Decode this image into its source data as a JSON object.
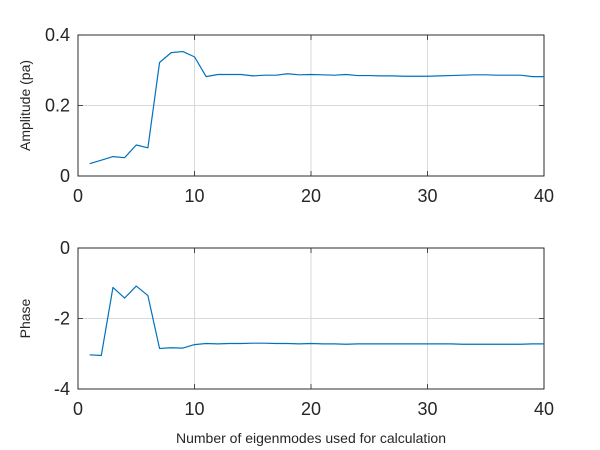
{
  "chart_data": [
    {
      "type": "line",
      "title": "",
      "xlabel": "",
      "ylabel": "Amplitude (pa)",
      "xlim": [
        0,
        40
      ],
      "ylim": [
        0,
        0.4
      ],
      "xticks": [
        0,
        10,
        20,
        30,
        40
      ],
      "yticks": [
        0,
        0.2,
        0.4
      ],
      "xtick_labels": [
        "0",
        "10",
        "20",
        "30",
        "40"
      ],
      "ytick_labels": [
        "0",
        "0.2",
        "0.4"
      ],
      "grid": true,
      "color": "#0072BD",
      "x": [
        1,
        2,
        3,
        4,
        5,
        6,
        7,
        8,
        9,
        10,
        11,
        12,
        13,
        14,
        15,
        16,
        17,
        18,
        19,
        20,
        21,
        22,
        23,
        24,
        25,
        26,
        27,
        28,
        29,
        30,
        31,
        32,
        33,
        34,
        35,
        36,
        37,
        38,
        39,
        40
      ],
      "y": [
        0.035,
        0.045,
        0.055,
        0.052,
        0.088,
        0.08,
        0.322,
        0.35,
        0.353,
        0.338,
        0.282,
        0.288,
        0.288,
        0.288,
        0.284,
        0.286,
        0.286,
        0.29,
        0.287,
        0.288,
        0.287,
        0.286,
        0.288,
        0.285,
        0.285,
        0.284,
        0.284,
        0.283,
        0.283,
        0.283,
        0.284,
        0.285,
        0.286,
        0.287,
        0.287,
        0.286,
        0.286,
        0.286,
        0.282,
        0.282
      ]
    },
    {
      "type": "line",
      "title": "",
      "xlabel": "Number of eigenmodes used for calculation",
      "ylabel": "Phase",
      "xlim": [
        0,
        40
      ],
      "ylim": [
        -4,
        0
      ],
      "xticks": [
        0,
        10,
        20,
        30,
        40
      ],
      "yticks": [
        -4,
        -2,
        0
      ],
      "xtick_labels": [
        "0",
        "10",
        "20",
        "30",
        "40"
      ],
      "ytick_labels": [
        "-4",
        "-2",
        "0"
      ],
      "grid": true,
      "color": "#0072BD",
      "x": [
        1,
        2,
        3,
        4,
        5,
        6,
        7,
        8,
        9,
        10,
        11,
        12,
        13,
        14,
        15,
        16,
        17,
        18,
        19,
        20,
        21,
        22,
        23,
        24,
        25,
        26,
        27,
        28,
        29,
        30,
        31,
        32,
        33,
        34,
        35,
        36,
        37,
        38,
        39,
        40
      ],
      "y": [
        -3.03,
        -3.05,
        -1.12,
        -1.42,
        -1.08,
        -1.35,
        -2.85,
        -2.83,
        -2.84,
        -2.74,
        -2.71,
        -2.72,
        -2.71,
        -2.71,
        -2.7,
        -2.7,
        -2.71,
        -2.71,
        -2.72,
        -2.71,
        -2.72,
        -2.72,
        -2.73,
        -2.72,
        -2.72,
        -2.72,
        -2.72,
        -2.72,
        -2.72,
        -2.72,
        -2.72,
        -2.72,
        -2.73,
        -2.73,
        -2.73,
        -2.73,
        -2.73,
        -2.73,
        -2.72,
        -2.72
      ]
    }
  ]
}
